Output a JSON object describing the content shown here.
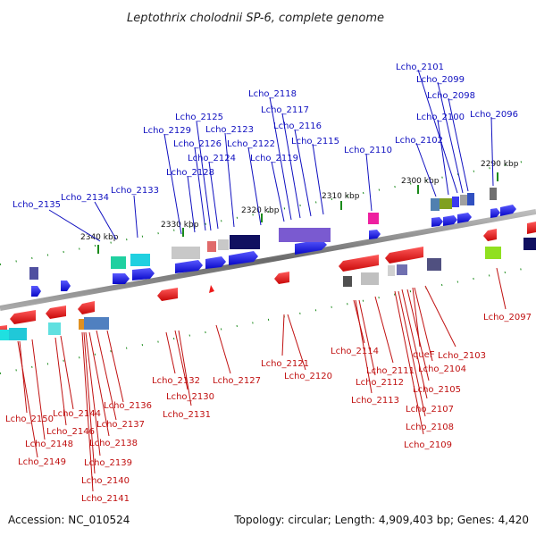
{
  "title": "Leptothrix cholodnii SP-6, complete genome",
  "footer": {
    "accession": "Accession: NC_010524",
    "summary": "Topology: circular; Length: 4,909,403 bp; Genes: 4,420"
  },
  "scale_labels": [
    "2340 kbp",
    "2330 kbp",
    "2320 kbp",
    "2310 kbp",
    "2300 kbp",
    "2290 kbp"
  ],
  "forward_labels": [
    "Lcho_2135",
    "Lcho_2134",
    "Lcho_2133",
    "Lcho_2129",
    "Lcho_2128",
    "Lcho_2125",
    "Lcho_2126",
    "Lcho_2123",
    "Lcho_2124",
    "Lcho_2122",
    "Lcho_2119",
    "Lcho_2118",
    "Lcho_2117",
    "Lcho_2116",
    "Lcho_2115",
    "Lcho_2110",
    "Lcho_2102",
    "Lcho_2101",
    "Lcho_2099",
    "Lcho_2098",
    "Lcho_2100",
    "Lcho_2096"
  ],
  "reverse_labels": [
    "Lcho_2150",
    "Lcho_2149",
    "Lcho_2148",
    "Lcho_2146",
    "Lcho_2144",
    "Lcho_2137",
    "Lcho_2136",
    "Lcho_2138",
    "Lcho_2139",
    "Lcho_2140",
    "Lcho_2141",
    "Lcho_2132",
    "Lcho_2130",
    "Lcho_2131",
    "Lcho_2127",
    "Lcho_2121",
    "Lcho_2120",
    "Lcho_2114",
    "Lcho_2111",
    "Lcho_2112",
    "Lcho_2113",
    "queF",
    "Lcho_2104",
    "Lcho_2103",
    "Lcho_2105",
    "Lcho_2107",
    "Lcho_2108",
    "Lcho_2109",
    "Lcho_2097"
  ],
  "colors": {
    "backbone": "#777777",
    "forward_gene": "#1a1aee",
    "reverse_gene": "#ee1a1a",
    "forward_label": "#1010c0",
    "reverse_label": "#c01010",
    "tick": "#1a8a1a"
  }
}
